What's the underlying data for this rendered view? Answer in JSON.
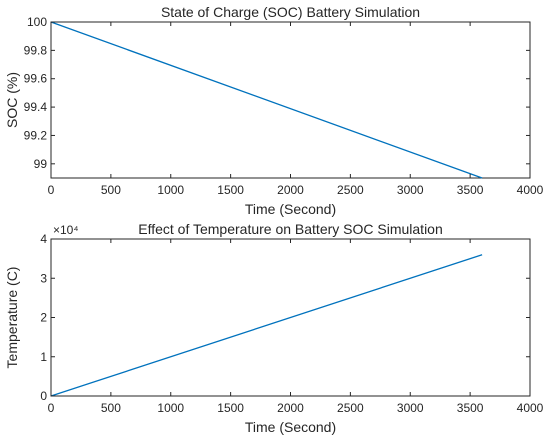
{
  "chart_data": [
    {
      "type": "line",
      "title": "State of Charge (SOC) Battery Simulation",
      "xlabel": "Time (Second)",
      "ylabel": "SOC (%)",
      "xlim": [
        0,
        4000
      ],
      "ylim": [
        98.9,
        100
      ],
      "x_ticks": [
        0,
        500,
        1000,
        1500,
        2000,
        2500,
        3000,
        3500,
        4000
      ],
      "x_tick_labels": [
        "0",
        "500",
        "1000",
        "1500",
        "2000",
        "2500",
        "3000",
        "3500",
        "4000"
      ],
      "y_ticks": [
        99,
        99.2,
        99.4,
        99.6,
        99.8,
        100
      ],
      "y_tick_labels": [
        "99",
        "99.2",
        "99.4",
        "99.6",
        "99.8",
        "100"
      ],
      "y_exponent_label": "",
      "grid": false,
      "series": [
        {
          "color": "#0072BD",
          "x": [
            0,
            3600
          ],
          "y": [
            100,
            98.9
          ]
        }
      ]
    },
    {
      "type": "line",
      "title": "Effect of Temperature on Battery SOC Simulation",
      "xlabel": "Time (Second)",
      "ylabel": "Temperature (C)",
      "xlim": [
        0,
        4000
      ],
      "ylim": [
        0,
        40000
      ],
      "x_ticks": [
        0,
        500,
        1000,
        1500,
        2000,
        2500,
        3000,
        3500,
        4000
      ],
      "x_tick_labels": [
        "0",
        "500",
        "1000",
        "1500",
        "2000",
        "2500",
        "3000",
        "3500",
        "4000"
      ],
      "y_ticks": [
        0,
        10000,
        20000,
        30000,
        40000
      ],
      "y_tick_labels": [
        "0",
        "1",
        "2",
        "3",
        "4"
      ],
      "y_exponent_label": "×10⁴",
      "grid": false,
      "series": [
        {
          "color": "#0072BD",
          "x": [
            0,
            3600
          ],
          "y": [
            0,
            36000
          ]
        }
      ]
    }
  ]
}
